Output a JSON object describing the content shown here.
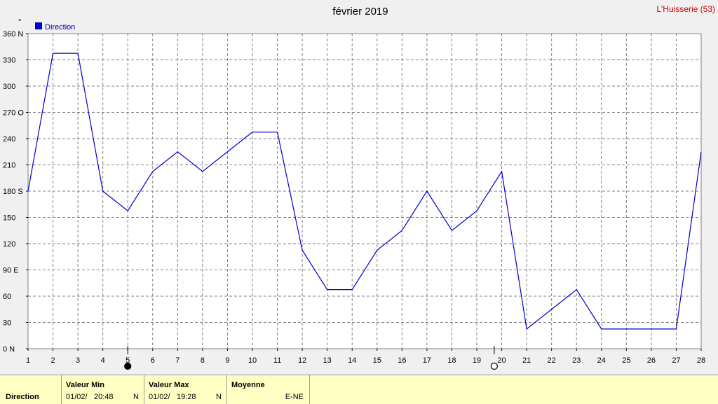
{
  "chart_data": {
    "type": "line",
    "title": "février 2019",
    "station": "L'Huisserie (53)",
    "unit_mark": "°",
    "legend": "Direction",
    "x": [
      1,
      2,
      3,
      4,
      5,
      6,
      7,
      8,
      9,
      10,
      11,
      12,
      13,
      14,
      15,
      16,
      17,
      18,
      19,
      20,
      21,
      22,
      23,
      24,
      25,
      26,
      27,
      28
    ],
    "series": [
      {
        "name": "Direction",
        "values": [
          180,
          337.5,
          337.5,
          180,
          157.5,
          202.5,
          225,
          202.5,
          225,
          247.5,
          247.5,
          112.5,
          67.5,
          67.5,
          112.5,
          135,
          180,
          135,
          157.5,
          202.5,
          22.5,
          45,
          67.5,
          22.5,
          22.5,
          22.5,
          22.5,
          225
        ]
      }
    ],
    "xlim": [
      1,
      28
    ],
    "ylim": [
      0,
      360
    ],
    "yticks": [
      {
        "v": 0,
        "label": "0  N"
      },
      {
        "v": 30,
        "label": "30"
      },
      {
        "v": 60,
        "label": "60"
      },
      {
        "v": 90,
        "label": "90  E"
      },
      {
        "v": 120,
        "label": "120"
      },
      {
        "v": 150,
        "label": "150"
      },
      {
        "v": 180,
        "label": "180 S"
      },
      {
        "v": 210,
        "label": "210"
      },
      {
        "v": 240,
        "label": "240"
      },
      {
        "v": 270,
        "label": "270 O"
      },
      {
        "v": 300,
        "label": "300"
      },
      {
        "v": 330,
        "label": "330"
      },
      {
        "v": 360,
        "label": "360 N"
      }
    ],
    "grid": true,
    "color": "#0000cc",
    "moon_phases": [
      {
        "day": 5,
        "phase": "new-moon"
      },
      {
        "day": 19.7,
        "phase": "full-moon"
      }
    ]
  },
  "footer": {
    "row_label": "Direction",
    "min_header": "Valeur Min",
    "min_date": "01/02/",
    "min_time": "20:48",
    "min_value": "N",
    "max_header": "Valeur Max",
    "max_date": "01/02/",
    "max_time": "19:28",
    "max_value": "N",
    "avg_header": "Moyenne",
    "avg_value": "E-NE"
  }
}
